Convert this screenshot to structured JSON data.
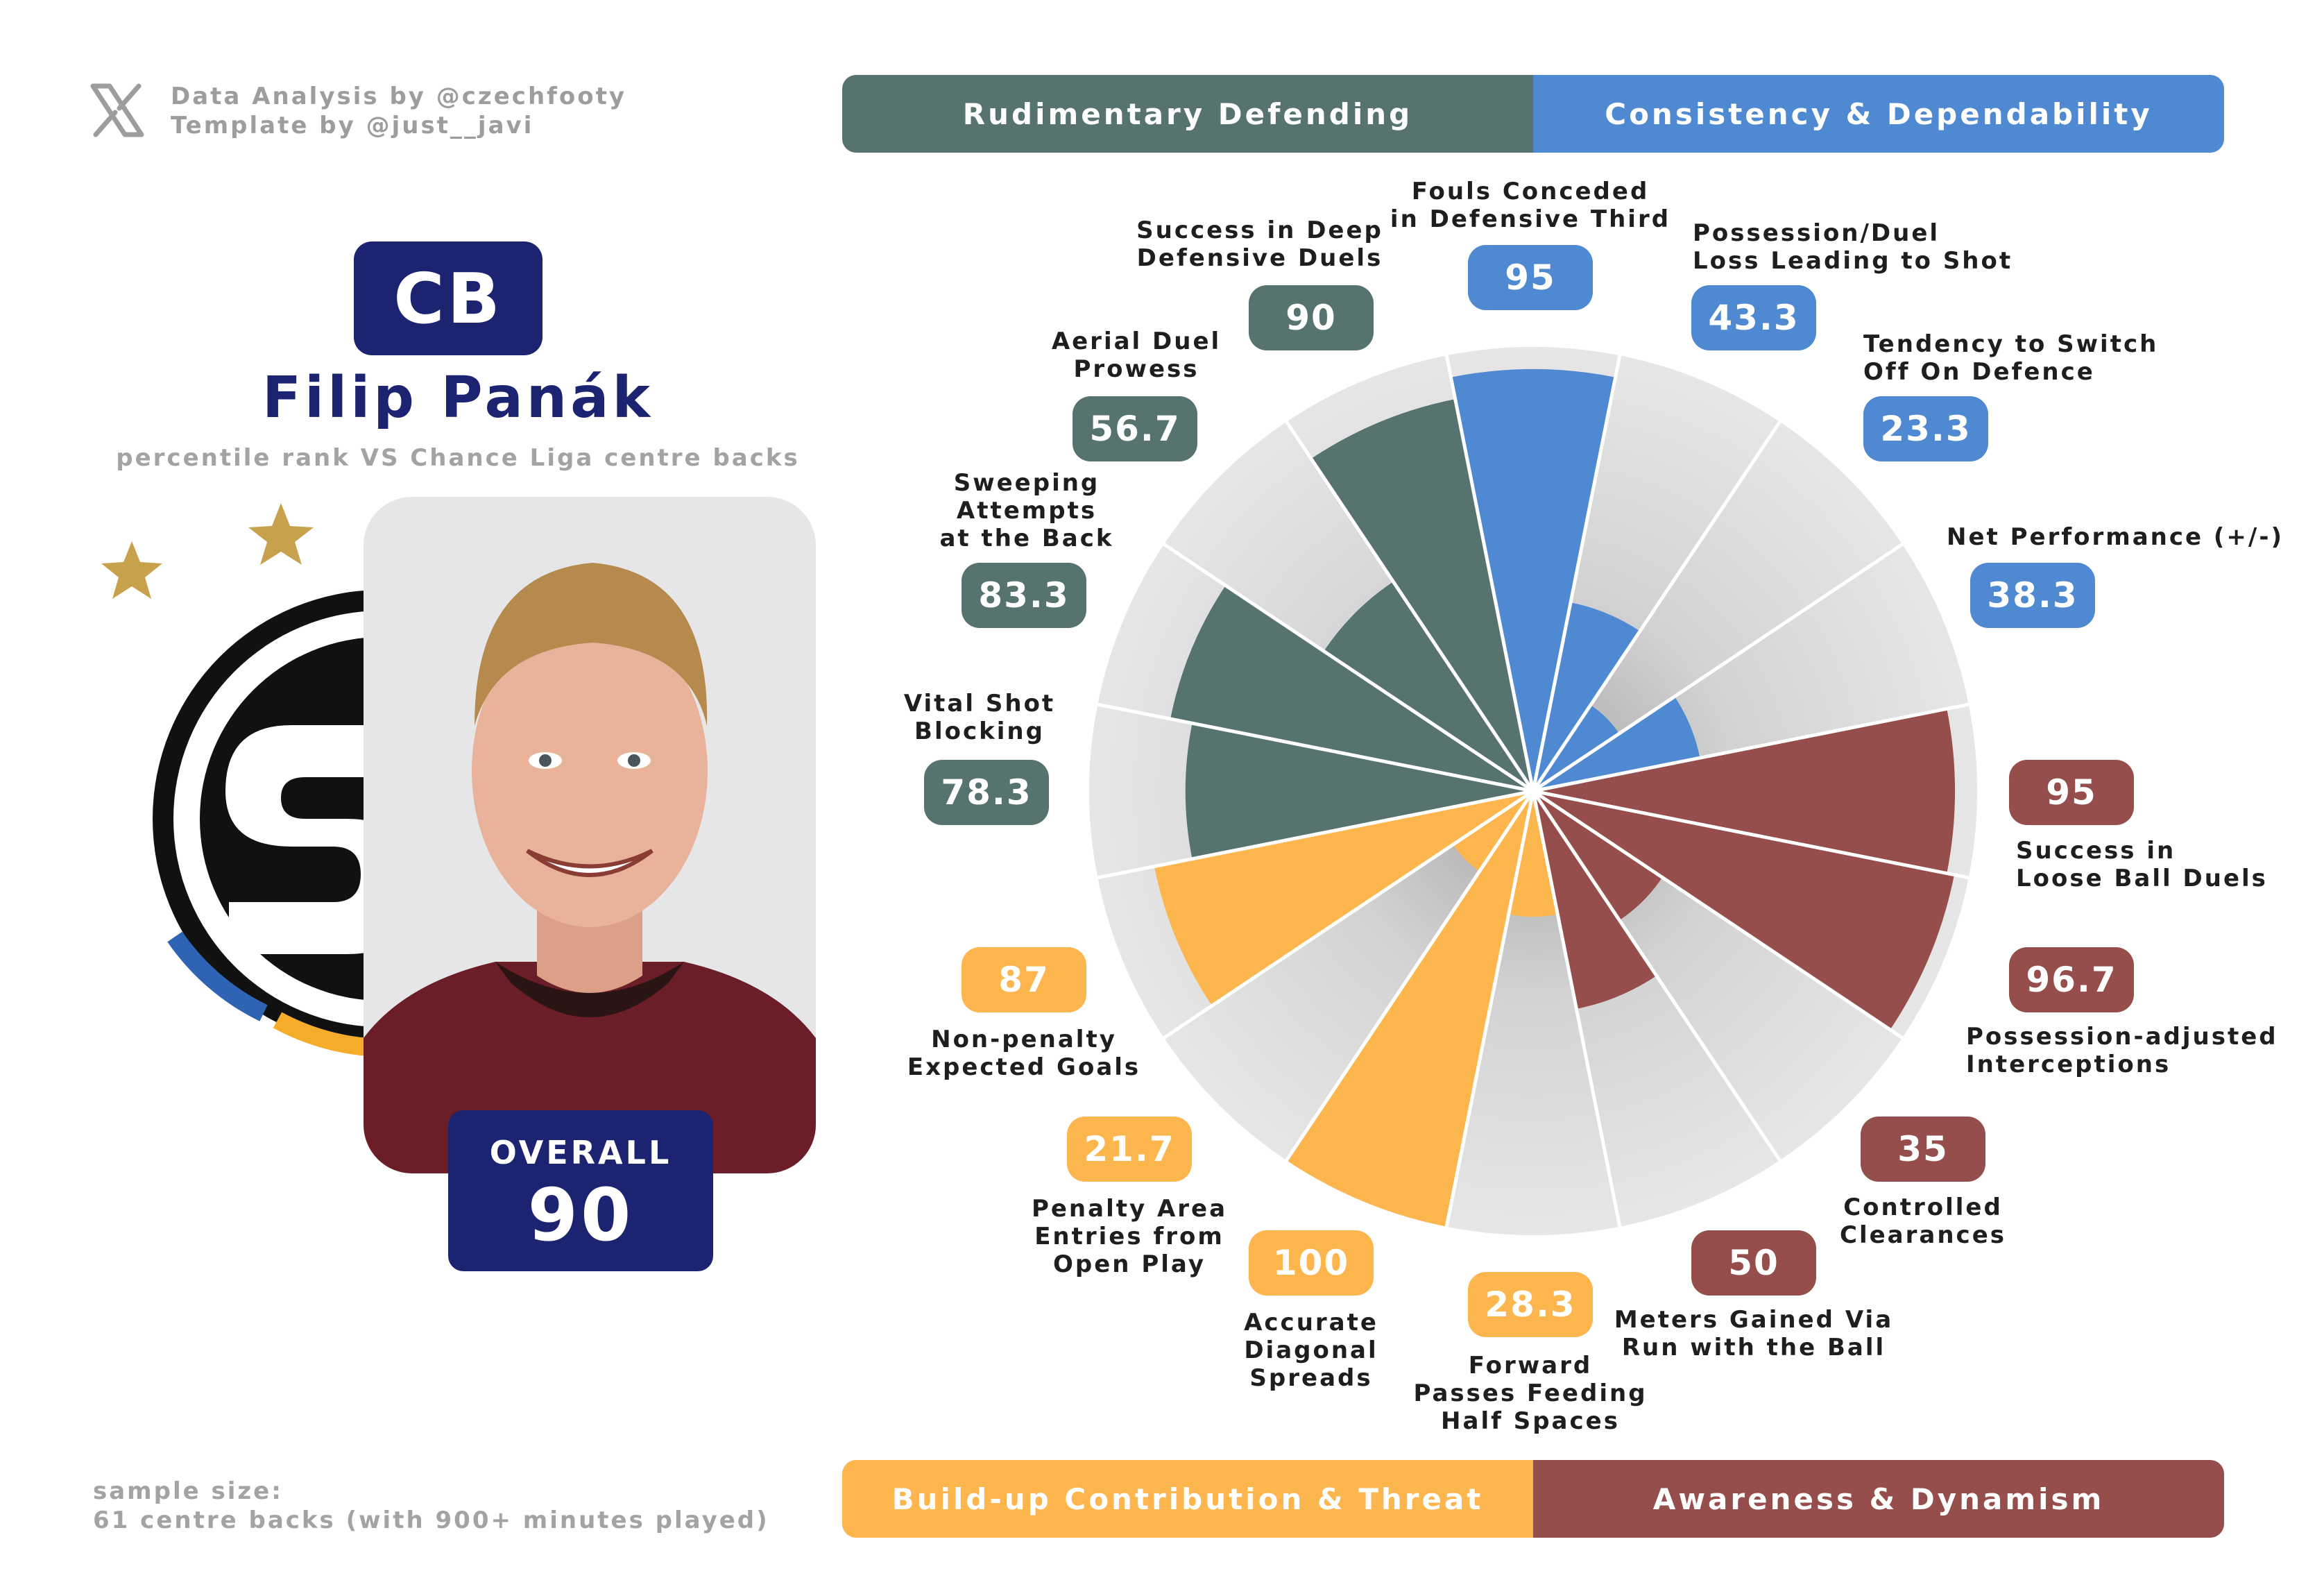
{
  "credits": {
    "icon": "x-logo-icon",
    "line1": "Data Analysis by @czechfooty",
    "line2": "Template by @just__javi"
  },
  "categories": {
    "top_left": "Rudimentary Defending",
    "top_right": "Consistency & Dependability",
    "bottom_left": "Build-up Contribution & Threat",
    "bottom_right": "Awareness & Dynamism"
  },
  "colors": {
    "defending": "#56736f",
    "consistency": "#4f89d1",
    "awareness": "#954e4b",
    "buildup": "#fdb54d",
    "navy": "#1c2472",
    "wedge_bg": "#e6e5e7"
  },
  "player": {
    "position": "CB",
    "name": "Filip Panák",
    "subtitle": "percentile rank VS Chance Liga centre backs",
    "overall_label": "OVERALL",
    "overall_value": "90"
  },
  "footer": {
    "line1": "sample size:",
    "line2": "61 centre backs (with 900+ minutes played)"
  },
  "chart_data": {
    "type": "polar bar",
    "rlim": [
      0,
      100
    ],
    "series": [
      {
        "name": "Rudimentary Defending",
        "color": "defending"
      },
      {
        "name": "Consistency & Dependability",
        "color": "consistency"
      },
      {
        "name": "Awareness & Dynamism",
        "color": "awareness"
      },
      {
        "name": "Build-up Contribution & Threat",
        "color": "buildup"
      }
    ],
    "metrics": [
      {
        "label": "Fouls Conceded\nin Defensive Third",
        "value": 95,
        "display": "95",
        "group": "consistency"
      },
      {
        "label": "Possession/Duel\nLoss Leading to Shot",
        "value": 43.3,
        "display": "43.3",
        "group": "consistency"
      },
      {
        "label": "Tendency to Switch\nOff On Defence",
        "value": 23.3,
        "display": "23.3",
        "group": "consistency"
      },
      {
        "label": "Net Performance (+/-)",
        "value": 38.3,
        "display": "38.3",
        "group": "consistency"
      },
      {
        "label": "Success in\nLoose Ball Duels",
        "value": 95,
        "display": "95",
        "group": "awareness"
      },
      {
        "label": "Possession-adjusted\nInterceptions",
        "value": 96.7,
        "display": "96.7",
        "group": "awareness"
      },
      {
        "label": "Controlled\nClearances",
        "value": 35,
        "display": "35",
        "group": "awareness"
      },
      {
        "label": "Meters Gained Via\nRun with the Ball",
        "value": 50,
        "display": "50",
        "group": "awareness"
      },
      {
        "label": "Forward\nPasses Feeding\nHalf Spaces",
        "value": 28.3,
        "display": "28.3",
        "group": "buildup"
      },
      {
        "label": "Accurate\nDiagonal\nSpreads",
        "value": 100,
        "display": "100",
        "group": "buildup"
      },
      {
        "label": "Penalty Area\nEntries from\nOpen Play",
        "value": 21.7,
        "display": "21.7",
        "group": "buildup"
      },
      {
        "label": "Non-penalty\nExpected Goals",
        "value": 87,
        "display": "87",
        "group": "buildup"
      },
      {
        "label": "Vital Shot\nBlocking",
        "value": 78.3,
        "display": "78.3",
        "group": "defending"
      },
      {
        "label": "Sweeping\nAttempts\nat the Back",
        "value": 83.3,
        "display": "83.3",
        "group": "defending"
      },
      {
        "label": "Aerial Duel\nProwess",
        "value": 56.7,
        "display": "56.7",
        "group": "defending"
      },
      {
        "label": "Success in Deep\nDefensive Duels",
        "value": 90,
        "display": "90",
        "group": "defending"
      }
    ]
  }
}
